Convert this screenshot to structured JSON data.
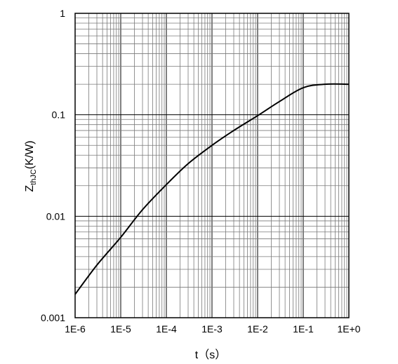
{
  "chart_data": {
    "type": "line",
    "title": "",
    "xlabel": "t（s）",
    "ylabel_main": "Z",
    "ylabel_sub": "thJC",
    "ylabel_rest": "(K/W)",
    "xscale": "log",
    "yscale": "log",
    "xlim": [
      1e-06,
      1
    ],
    "ylim": [
      0.001,
      1
    ],
    "grid": true,
    "x_tick_labels": [
      "1E-6",
      "1E-5",
      "1E-4",
      "1E-3",
      "1E-2",
      "1E-1",
      "1E+0"
    ],
    "y_tick_labels": [
      "0.001",
      "0.01",
      "0.1",
      "1"
    ],
    "series": [
      {
        "x": [
          1e-06,
          3e-06,
          1e-05,
          3e-05,
          0.0001,
          0.0003,
          0.001,
          0.003,
          0.01,
          0.03,
          0.1,
          0.3,
          1
        ],
        "y": [
          0.0017,
          0.0033,
          0.0062,
          0.0116,
          0.0205,
          0.033,
          0.05,
          0.07,
          0.098,
          0.135,
          0.185,
          0.2,
          0.2
        ]
      }
    ],
    "line_color": "#000000"
  }
}
